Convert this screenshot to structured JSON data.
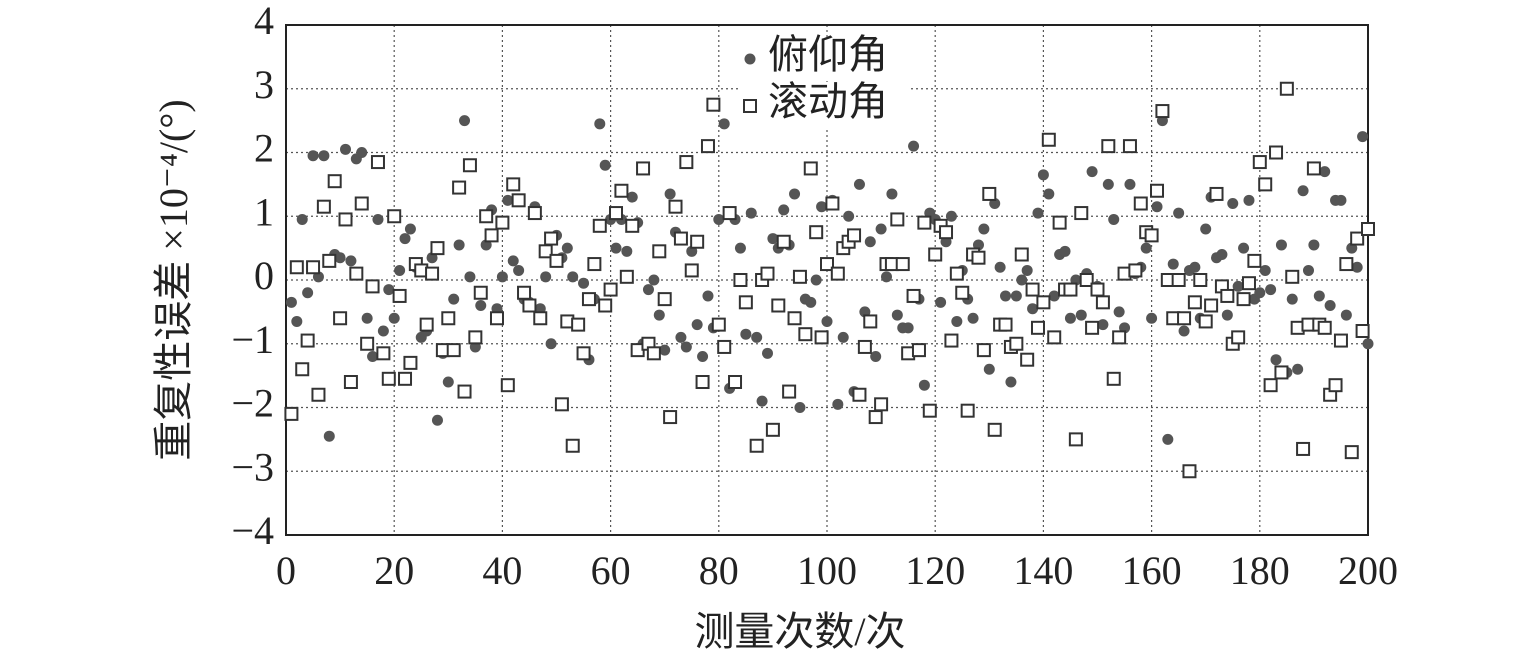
{
  "chart_data": {
    "type": "scatter",
    "xlabel": "测量次数/次",
    "ylabel": "重复性误差 ×10⁻⁴/(°)",
    "x": [
      1,
      2,
      3,
      4,
      5,
      6,
      7,
      8,
      9,
      10,
      11,
      12,
      13,
      14,
      15,
      16,
      17,
      18,
      19,
      20,
      21,
      22,
      23,
      24,
      25,
      26,
      27,
      28,
      29,
      30,
      31,
      32,
      33,
      34,
      35,
      36,
      37,
      38,
      39,
      40,
      41,
      42,
      43,
      44,
      45,
      46,
      47,
      48,
      49,
      50,
      51,
      52,
      53,
      54,
      55,
      56,
      57,
      58,
      59,
      60,
      61,
      62,
      63,
      64,
      65,
      66,
      67,
      68,
      69,
      70,
      71,
      72,
      73,
      74,
      75,
      76,
      77,
      78,
      79,
      80,
      81,
      82,
      83,
      84,
      85,
      86,
      87,
      88,
      89,
      90,
      91,
      92,
      93,
      94,
      95,
      96,
      97,
      98,
      99,
      100,
      101,
      102,
      103,
      104,
      105,
      106,
      107,
      108,
      109,
      110,
      111,
      112,
      113,
      114,
      115,
      116,
      117,
      118,
      119,
      120,
      121,
      122,
      123,
      124,
      125,
      126,
      127,
      128,
      129,
      130,
      131,
      132,
      133,
      134,
      135,
      136,
      137,
      138,
      139,
      140,
      141,
      142,
      143,
      144,
      145,
      146,
      147,
      148,
      149,
      150,
      151,
      152,
      153,
      154,
      155,
      156,
      157,
      158,
      159,
      160,
      161,
      162,
      163,
      164,
      165,
      166,
      167,
      168,
      169,
      170,
      171,
      172,
      173,
      174,
      175,
      176,
      177,
      178,
      179,
      180,
      181,
      182,
      183,
      184,
      185,
      186,
      187,
      188,
      189,
      190,
      191,
      192,
      193,
      194,
      195,
      196,
      197,
      198,
      199,
      200
    ],
    "series": [
      {
        "name": "俯仰角",
        "color": "#555555",
        "marker": "circle",
        "values": [
          -0.35,
          -0.65,
          0.95,
          -0.2,
          1.95,
          0.05,
          1.95,
          -2.45,
          0.4,
          0.35,
          2.05,
          0.3,
          1.9,
          2.0,
          -0.6,
          -1.2,
          0.95,
          -0.8,
          -0.15,
          -0.6,
          0.15,
          0.65,
          0.8,
          0.2,
          -0.9,
          -0.8,
          0.35,
          -2.2,
          -1.15,
          -1.6,
          -0.3,
          0.55,
          2.5,
          0.05,
          -1.05,
          -0.4,
          0.55,
          1.1,
          -0.45,
          0.05,
          1.25,
          0.3,
          0.15,
          -0.3,
          -0.35,
          1.15,
          -0.45,
          0.05,
          -1.0,
          0.7,
          0.35,
          0.5,
          0.05,
          -0.7,
          -0.05,
          -1.25,
          -0.3,
          2.45,
          1.8,
          0.95,
          0.5,
          0.95,
          0.45,
          1.3,
          0.9,
          -1.0,
          -0.15,
          0.0,
          -0.55,
          -1.1,
          1.35,
          0.75,
          -0.9,
          -1.05,
          0.45,
          -0.7,
          -1.2,
          -0.25,
          -0.75,
          0.95,
          2.45,
          -1.7,
          0.95,
          0.5,
          -0.85,
          1.05,
          -0.9,
          -1.9,
          -1.15,
          0.65,
          0.5,
          1.1,
          0.55,
          1.35,
          -2.0,
          -0.3,
          -0.35,
          0.0,
          1.15,
          -0.65,
          1.25,
          -1.95,
          -0.9,
          1.0,
          -1.75,
          1.5,
          -0.5,
          0.6,
          -1.2,
          0.8,
          0.05,
          1.35,
          -0.55,
          -0.75,
          -0.75,
          2.1,
          -0.3,
          -1.65,
          1.05,
          0.95,
          -0.35,
          0.6,
          1.0,
          -0.65,
          0.15,
          -0.3,
          -0.6,
          0.55,
          0.8,
          -1.4,
          1.2,
          0.2,
          -0.25,
          -1.6,
          -0.25,
          0.0,
          0.15,
          -0.45,
          1.05,
          1.65,
          1.35,
          -0.25,
          0.4,
          0.45,
          -0.6,
          0.0,
          -0.55,
          0.1,
          1.7,
          -0.1,
          -0.7,
          1.5,
          0.95,
          -0.5,
          -0.75,
          1.5,
          0.1,
          0.2,
          0.5,
          -0.6,
          1.15,
          2.5,
          -2.5,
          0.25,
          1.05,
          -0.8,
          0.15,
          0.2,
          -0.6,
          0.8,
          1.3,
          0.35,
          0.4,
          -0.55,
          1.2,
          -0.1,
          0.5,
          1.25,
          -0.3,
          -0.2,
          0.15,
          -0.15,
          -1.25,
          0.55,
          -1.45,
          -0.3,
          -1.4,
          1.4,
          0.15,
          0.55,
          -0.25,
          1.7,
          -0.4,
          1.25,
          1.25,
          -0.55,
          0.5,
          0.2,
          2.25,
          -1.0
        ]
      },
      {
        "name": "滚动角",
        "color": "#333333",
        "marker": "square",
        "values": [
          -2.1,
          0.2,
          -1.4,
          -0.95,
          0.2,
          -1.8,
          1.15,
          0.3,
          1.55,
          -0.6,
          0.95,
          -1.6,
          0.1,
          1.2,
          -1.0,
          -0.1,
          1.85,
          -1.15,
          -1.55,
          1.0,
          -0.25,
          -1.55,
          -1.3,
          0.25,
          0.15,
          -0.7,
          0.1,
          0.5,
          -1.1,
          -0.6,
          -1.1,
          1.45,
          -1.75,
          1.8,
          -0.9,
          -0.2,
          1.0,
          0.7,
          -0.6,
          0.9,
          -1.65,
          1.5,
          1.25,
          -0.2,
          -0.4,
          1.05,
          -0.6,
          0.45,
          0.65,
          0.3,
          -1.95,
          -0.65,
          -2.6,
          -0.7,
          -1.15,
          -0.3,
          0.25,
          0.85,
          -0.4,
          -0.15,
          1.05,
          1.4,
          0.05,
          0.85,
          -1.1,
          1.75,
          -1.0,
          -1.15,
          0.45,
          -0.3,
          -2.15,
          1.15,
          0.65,
          1.85,
          0.15,
          0.6,
          -1.6,
          2.1,
          2.75,
          -0.7,
          -1.05,
          1.05,
          -1.6,
          0.0,
          -0.35,
          2.65,
          -2.6,
          0.0,
          0.1,
          -2.35,
          -0.4,
          0.6,
          -1.75,
          -0.6,
          0.05,
          -0.85,
          1.75,
          0.75,
          -0.9,
          0.25,
          1.2,
          0.1,
          0.5,
          0.6,
          0.7,
          -1.8,
          -1.05,
          -0.65,
          -2.15,
          -1.95,
          0.25,
          0.25,
          0.95,
          0.25,
          -1.15,
          -0.25,
          -1.1,
          0.9,
          -2.05,
          0.4,
          0.85,
          0.75,
          -0.95,
          0.1,
          -0.2,
          -2.05,
          0.4,
          0.35,
          -1.1,
          1.35,
          -2.35,
          -0.7,
          -0.7,
          -1.05,
          -1.0,
          0.4,
          -1.25,
          -0.15,
          -0.75,
          -0.35,
          2.2,
          -0.9,
          0.9,
          -0.15,
          -0.15,
          -2.5,
          1.05,
          0.0,
          -0.75,
          -0.15,
          -0.35,
          2.1,
          -1.55,
          -0.9,
          0.1,
          2.1,
          0.15,
          1.2,
          0.75,
          0.7,
          1.4,
          2.65,
          0.0,
          -0.6,
          0.0,
          -0.6,
          -3.0,
          -0.35,
          0.0,
          -0.65,
          -0.4,
          1.35,
          -0.1,
          -0.25,
          -1.0,
          -0.9,
          -0.3,
          -0.05,
          0.3,
          1.85,
          1.5,
          -1.65,
          2.0,
          -1.45,
          3.0,
          0.05,
          -0.75,
          -2.65,
          -0.7,
          1.75,
          -0.7,
          -0.75,
          -1.8,
          -1.65,
          -0.95,
          0.25,
          -2.7,
          0.65,
          -0.8,
          0.8
        ]
      }
    ],
    "xlim": [
      0,
      200
    ],
    "xticks": [
      0,
      20,
      40,
      60,
      80,
      100,
      120,
      140,
      160,
      180,
      200
    ],
    "ylim": [
      -4,
      4
    ],
    "yticks": [
      {
        "value": -4,
        "label": "−4"
      },
      {
        "value": -3,
        "label": "−3"
      },
      {
        "value": -2,
        "label": "−2"
      },
      {
        "value": -1,
        "label": "−1"
      },
      0,
      1,
      2,
      3,
      4
    ],
    "grid": true,
    "legend": "upper center"
  }
}
